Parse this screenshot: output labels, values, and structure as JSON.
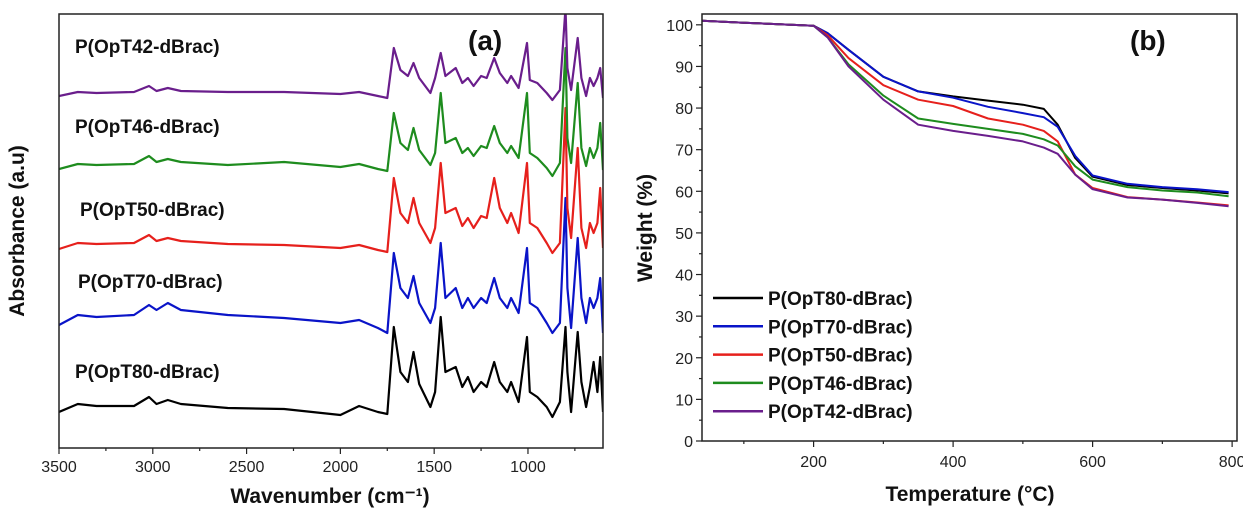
{
  "chart_data": [
    {
      "type": "line",
      "panel_label": "(a)",
      "xlabel": "Wavenumber (cm⁻¹)",
      "ylabel": "Absorbance (a.u)",
      "xlim": [
        3500,
        600
      ],
      "x_reversed": true,
      "ylim": [
        0,
        434
      ],
      "y_ticks_shown": false,
      "xticks": [
        3500,
        3000,
        2500,
        2000,
        1500,
        1000
      ],
      "grid": false,
      "legend": "inline labels above each trace",
      "x": [
        3500,
        3400,
        3300,
        3100,
        3020,
        2980,
        2920,
        2850,
        2600,
        2300,
        2000,
        1900,
        1800,
        1750,
        1715,
        1680,
        1640,
        1610,
        1580,
        1520,
        1495,
        1465,
        1440,
        1385,
        1350,
        1320,
        1290,
        1250,
        1220,
        1180,
        1150,
        1110,
        1090,
        1050,
        1005,
        990,
        950,
        900,
        870,
        830,
        800,
        790,
        770,
        735,
        715,
        690,
        670,
        650,
        630,
        615,
        600
      ],
      "series": [
        {
          "name": "P(OpT80-dBrac)",
          "color": "#000000",
          "values": [
            36,
            44,
            42,
            42,
            51,
            44,
            48,
            44,
            40,
            39,
            33,
            42,
            36,
            34,
            121,
            76,
            66,
            96,
            64,
            41,
            56,
            131,
            76,
            81,
            61,
            71,
            56,
            66,
            61,
            86,
            66,
            56,
            66,
            46,
            111,
            56,
            51,
            41,
            31,
            46,
            121,
            76,
            36,
            116,
            66,
            41,
            61,
            86,
            56,
            91,
            36
          ]
        },
        {
          "name": "P(OpT70-dBrac)",
          "color": "#0a14c8",
          "values": [
            123,
            133,
            131,
            133,
            143,
            138,
            145,
            138,
            133,
            130,
            125,
            128,
            120,
            115,
            195,
            160,
            150,
            172,
            145,
            125,
            140,
            205,
            150,
            160,
            140,
            150,
            140,
            150,
            145,
            170,
            150,
            140,
            150,
            135,
            200,
            145,
            140,
            125,
            115,
            125,
            250,
            160,
            120,
            210,
            150,
            125,
            150,
            140,
            150,
            170,
            115
          ]
        },
        {
          "name": "P(OpT50-dBrac)",
          "color": "#e6201c",
          "values": [
            199,
            205,
            204,
            205,
            213,
            207,
            210,
            207,
            204,
            203,
            200,
            203,
            198,
            196,
            270,
            235,
            225,
            250,
            225,
            205,
            220,
            285,
            235,
            240,
            222,
            230,
            220,
            232,
            230,
            270,
            240,
            225,
            235,
            215,
            285,
            225,
            220,
            205,
            195,
            205,
            340,
            240,
            210,
            300,
            220,
            200,
            225,
            215,
            225,
            260,
            200
          ]
        },
        {
          "name": "P(OpT46-dBrac)",
          "color": "#1e8c1e",
          "values": [
            279,
            284,
            283,
            284,
            292,
            286,
            289,
            286,
            283,
            286,
            281,
            284,
            279,
            277,
            335,
            305,
            298,
            320,
            298,
            283,
            295,
            355,
            305,
            310,
            295,
            300,
            292,
            302,
            300,
            322,
            305,
            295,
            302,
            290,
            355,
            295,
            290,
            280,
            272,
            285,
            400,
            310,
            285,
            365,
            300,
            282,
            300,
            290,
            300,
            325,
            278
          ]
        },
        {
          "name": "P(OpT42-dBrac)",
          "color": "#6a1e8c",
          "values": [
            352,
            356,
            355,
            356,
            362,
            357,
            360,
            357,
            356,
            356,
            354,
            356,
            352,
            350,
            400,
            378,
            372,
            385,
            370,
            355,
            370,
            395,
            372,
            380,
            365,
            370,
            362,
            372,
            370,
            390,
            375,
            365,
            372,
            360,
            405,
            368,
            365,
            355,
            348,
            358,
            440,
            380,
            358,
            410,
            370,
            352,
            370,
            362,
            370,
            380,
            350
          ]
        }
      ]
    },
    {
      "type": "line",
      "panel_label": "(b)",
      "xlabel": "Temperature (°C)",
      "ylabel": "Weight (%)",
      "xlim": [
        40,
        807
      ],
      "ylim": [
        0,
        102.6
      ],
      "xticks": [
        200,
        400,
        600,
        800
      ],
      "yticks": [
        0,
        10,
        20,
        30,
        40,
        50,
        60,
        70,
        80,
        90,
        100
      ],
      "grid": false,
      "legend": "bottom-left",
      "x": [
        40,
        100,
        200,
        220,
        250,
        300,
        350,
        400,
        450,
        500,
        530,
        550,
        575,
        600,
        650,
        700,
        750,
        795
      ],
      "series": [
        {
          "name": "P(OpT80-dBrac)",
          "color": "#000000",
          "values": [
            101,
            100.5,
            99.8,
            98,
            94,
            87.5,
            84,
            82.8,
            81.8,
            80.8,
            79.8,
            76,
            68,
            63.5,
            61.5,
            60.8,
            60.2,
            59.5
          ]
        },
        {
          "name": "P(OpT70-dBrac)",
          "color": "#0a14c8",
          "values": [
            101,
            100.5,
            99.8,
            98,
            94,
            87.5,
            84,
            82.5,
            80.3,
            78.8,
            77.8,
            75.5,
            68.5,
            63.8,
            61.8,
            61,
            60.5,
            59.8
          ]
        },
        {
          "name": "P(OpT50-dBrac)",
          "color": "#e6201c",
          "values": [
            101,
            100.5,
            99.8,
            97.5,
            92,
            85.5,
            82,
            80.5,
            77.5,
            76,
            74.5,
            72,
            64,
            60.8,
            58.6,
            58,
            57.3,
            56.6
          ]
        },
        {
          "name": "P(OpT46-dBrac)",
          "color": "#1e8c1e",
          "values": [
            101,
            100.5,
            99.8,
            97,
            90.5,
            83,
            77.5,
            76.2,
            75,
            73.8,
            72.5,
            71,
            66,
            62.8,
            61,
            60.2,
            59.7,
            58.8
          ]
        },
        {
          "name": "P(OpT42-dBrac)",
          "color": "#6a1e8c",
          "values": [
            101,
            100.5,
            99.8,
            97,
            90,
            82,
            76,
            74.5,
            73.3,
            72,
            70.5,
            69,
            64,
            60.5,
            58.5,
            58,
            57.2,
            56.4
          ]
        }
      ]
    }
  ]
}
